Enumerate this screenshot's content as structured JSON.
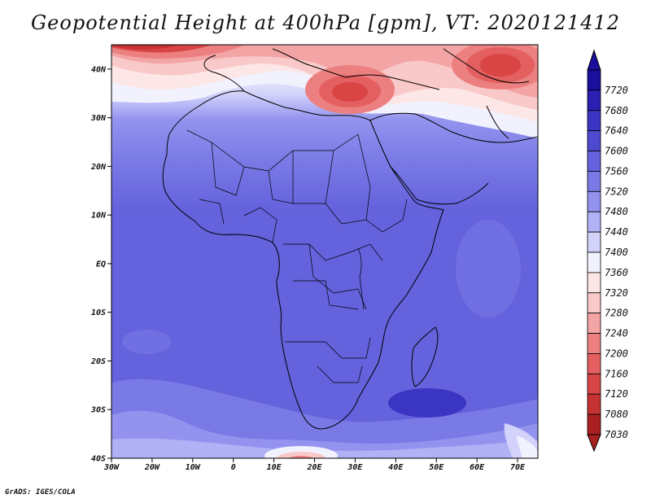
{
  "title": "Geopotential Height at 400hPa [gpm], VT: 2020121412",
  "credit": "GrADS: IGES/COLA",
  "map": {
    "lon_range": [
      -30,
      75
    ],
    "lat_range": [
      -40,
      45
    ],
    "lat_ticks": [
      {
        "value": 40,
        "label": "40N"
      },
      {
        "value": 30,
        "label": "30N"
      },
      {
        "value": 20,
        "label": "20N"
      },
      {
        "value": 10,
        "label": "10N"
      },
      {
        "value": 0,
        "label": "EQ"
      },
      {
        "value": -10,
        "label": "10S"
      },
      {
        "value": -20,
        "label": "20S"
      },
      {
        "value": -30,
        "label": "30S"
      },
      {
        "value": -40,
        "label": "40S"
      }
    ],
    "lon_ticks": [
      {
        "value": -30,
        "label": "30W"
      },
      {
        "value": -20,
        "label": "20W"
      },
      {
        "value": -10,
        "label": "10W"
      },
      {
        "value": 0,
        "label": "0"
      },
      {
        "value": 10,
        "label": "10E"
      },
      {
        "value": 20,
        "label": "20E"
      },
      {
        "value": 30,
        "label": "30E"
      },
      {
        "value": 40,
        "label": "40E"
      },
      {
        "value": 50,
        "label": "50E"
      },
      {
        "value": 60,
        "label": "60E"
      },
      {
        "value": 70,
        "label": "70E"
      }
    ]
  },
  "colorbar": {
    "orientation": "vertical",
    "placement": "right",
    "levels": [
      {
        "value": "7720",
        "color": "#1a0e9c"
      },
      {
        "value": "7680",
        "color": "#2a1fb0"
      },
      {
        "value": "7640",
        "color": "#3b35c4"
      },
      {
        "value": "7600",
        "color": "#4d4ad0"
      },
      {
        "value": "7560",
        "color": "#6462dc"
      },
      {
        "value": "7520",
        "color": "#7a7ae6"
      },
      {
        "value": "7480",
        "color": "#9393ef"
      },
      {
        "value": "7440",
        "color": "#b1b1f6"
      },
      {
        "value": "7400",
        "color": "#d2d2fb"
      },
      {
        "value": "7360",
        "color": "#f2f2ff"
      },
      {
        "value": "7320",
        "color": "#fde6e6"
      },
      {
        "value": "7280",
        "color": "#f9c8c8"
      },
      {
        "value": "7240",
        "color": "#f3a4a4"
      },
      {
        "value": "7200",
        "color": "#ec8080"
      },
      {
        "value": "7160",
        "color": "#e45f5f"
      },
      {
        "value": "7120",
        "color": "#d94545"
      },
      {
        "value": "7080",
        "color": "#c63232"
      },
      {
        "value": "7030",
        "color": "#a82020"
      }
    ]
  }
}
